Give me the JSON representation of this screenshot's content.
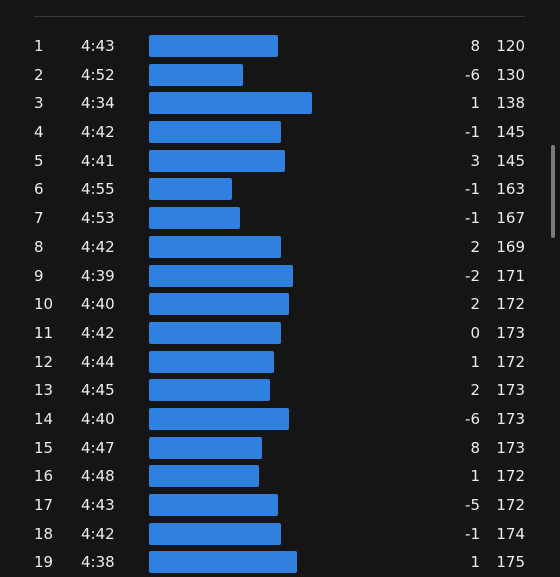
{
  "splits": {
    "max_pace_seconds": 300,
    "rows": [
      {
        "km": "1",
        "pace": "4:43",
        "pace_seconds": 283,
        "elevation": "8",
        "heart_rate": "120"
      },
      {
        "km": "2",
        "pace": "4:52",
        "pace_seconds": 292,
        "elevation": "-6",
        "heart_rate": "130"
      },
      {
        "km": "3",
        "pace": "4:34",
        "pace_seconds": 274,
        "elevation": "1",
        "heart_rate": "138"
      },
      {
        "km": "4",
        "pace": "4:42",
        "pace_seconds": 282,
        "elevation": "-1",
        "heart_rate": "145"
      },
      {
        "km": "5",
        "pace": "4:41",
        "pace_seconds": 281,
        "elevation": "3",
        "heart_rate": "145"
      },
      {
        "km": "6",
        "pace": "4:55",
        "pace_seconds": 295,
        "elevation": "-1",
        "heart_rate": "163"
      },
      {
        "km": "7",
        "pace": "4:53",
        "pace_seconds": 293,
        "elevation": "-1",
        "heart_rate": "167"
      },
      {
        "km": "8",
        "pace": "4:42",
        "pace_seconds": 282,
        "elevation": "2",
        "heart_rate": "169"
      },
      {
        "km": "9",
        "pace": "4:39",
        "pace_seconds": 279,
        "elevation": "-2",
        "heart_rate": "171"
      },
      {
        "km": "10",
        "pace": "4:40",
        "pace_seconds": 280,
        "elevation": "2",
        "heart_rate": "172"
      },
      {
        "km": "11",
        "pace": "4:42",
        "pace_seconds": 282,
        "elevation": "0",
        "heart_rate": "173"
      },
      {
        "km": "12",
        "pace": "4:44",
        "pace_seconds": 284,
        "elevation": "1",
        "heart_rate": "172"
      },
      {
        "km": "13",
        "pace": "4:45",
        "pace_seconds": 285,
        "elevation": "2",
        "heart_rate": "173"
      },
      {
        "km": "14",
        "pace": "4:40",
        "pace_seconds": 280,
        "elevation": "-6",
        "heart_rate": "173"
      },
      {
        "km": "15",
        "pace": "4:47",
        "pace_seconds": 287,
        "elevation": "8",
        "heart_rate": "173"
      },
      {
        "km": "16",
        "pace": "4:48",
        "pace_seconds": 288,
        "elevation": "1",
        "heart_rate": "172"
      },
      {
        "km": "17",
        "pace": "4:43",
        "pace_seconds": 283,
        "elevation": "-5",
        "heart_rate": "172"
      },
      {
        "km": "18",
        "pace": "4:42",
        "pace_seconds": 282,
        "elevation": "-1",
        "heart_rate": "174"
      },
      {
        "km": "19",
        "pace": "4:38",
        "pace_seconds": 278,
        "elevation": "1",
        "heart_rate": "175"
      }
    ]
  },
  "colors": {
    "background": "#151515",
    "bar": "#3080df",
    "text": "#ececec"
  }
}
